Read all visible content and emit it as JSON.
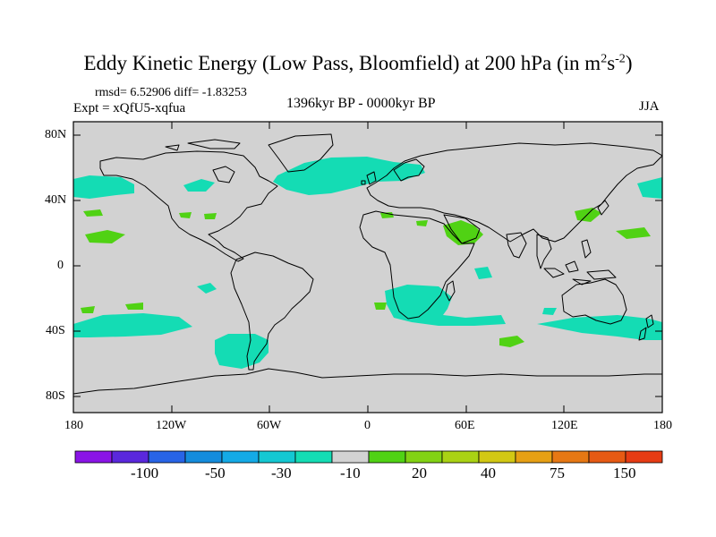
{
  "title": {
    "main": "Eddy Kinetic Energy (Low Pass, Bloomfield) at 200 hPa (in m",
    "sup1": "2",
    "mid": "s",
    "sup2": "-2",
    "close": ")"
  },
  "stats": "rmsd= 6.52906 diff= -1.83253",
  "expt": "Expt = xQfU5-xqfua",
  "period": "1396kyr BP - 0000kyr BP",
  "season": "JJA",
  "lat_labels": [
    "80N",
    "40N",
    "0",
    "40S",
    "80S"
  ],
  "lon_labels": [
    "180",
    "120W",
    "60W",
    "0",
    "60E",
    "120E",
    "180"
  ],
  "colorbar": {
    "colors": [
      "#8a14e6",
      "#5a28dc",
      "#2864e6",
      "#148cdc",
      "#14aae6",
      "#14c8d2",
      "#14dcb4",
      "#d2d2d2",
      "#50d214",
      "#82d214",
      "#aad214",
      "#d2c814",
      "#e6a014",
      "#e67814",
      "#e65a14",
      "#e63c14"
    ],
    "labels": [
      "-100",
      "-50",
      "-30",
      "-10",
      "20",
      "40",
      "75",
      "150"
    ]
  },
  "colors": {
    "background": "#d2d2d2",
    "negative": "#14dcb4",
    "positive": "#50d214"
  }
}
